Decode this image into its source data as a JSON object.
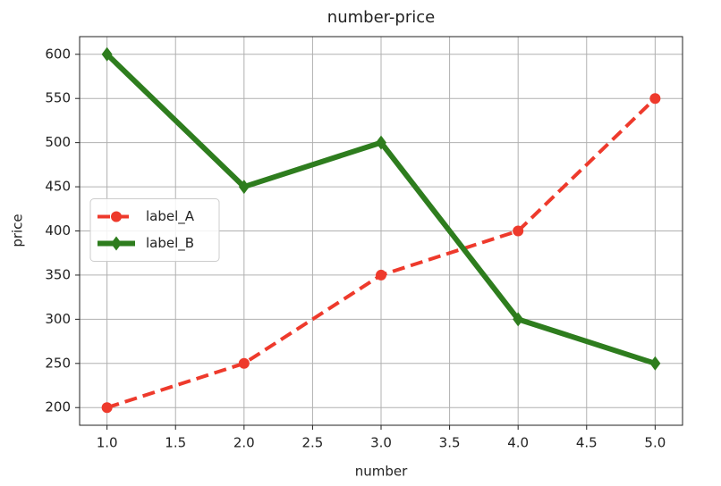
{
  "chart_data": {
    "type": "line",
    "title": "number-price",
    "x_label": "number",
    "y_label": "price",
    "x": [
      1,
      2,
      3,
      4,
      5
    ],
    "series": [
      {
        "name": "label_A",
        "color": "#ee3a2c",
        "dash": true,
        "marker": "circle",
        "values": [
          200,
          250,
          350,
          400,
          550
        ]
      },
      {
        "name": "label_B",
        "color": "#2e7d1e",
        "dash": false,
        "marker": "diamond",
        "values": [
          600,
          450,
          500,
          300,
          250
        ]
      }
    ],
    "xlim": [
      0.8,
      5.2
    ],
    "xticks": [
      {
        "value": 1,
        "label": "1.0"
      },
      {
        "value": 1.5,
        "label": "1.5"
      },
      {
        "value": 2,
        "label": "2.0"
      },
      {
        "value": 2.5,
        "label": "2.5"
      },
      {
        "value": 3,
        "label": "3.0"
      },
      {
        "value": 3.5,
        "label": "3.5"
      },
      {
        "value": 4,
        "label": "4.0"
      },
      {
        "value": 4.5,
        "label": "4.5"
      },
      {
        "value": 5,
        "label": "5.0"
      }
    ],
    "ylim": [
      180,
      620
    ],
    "yticks": [
      200,
      250,
      300,
      350,
      400,
      450,
      500,
      550,
      600
    ],
    "grid": true,
    "legend": "center-left"
  }
}
